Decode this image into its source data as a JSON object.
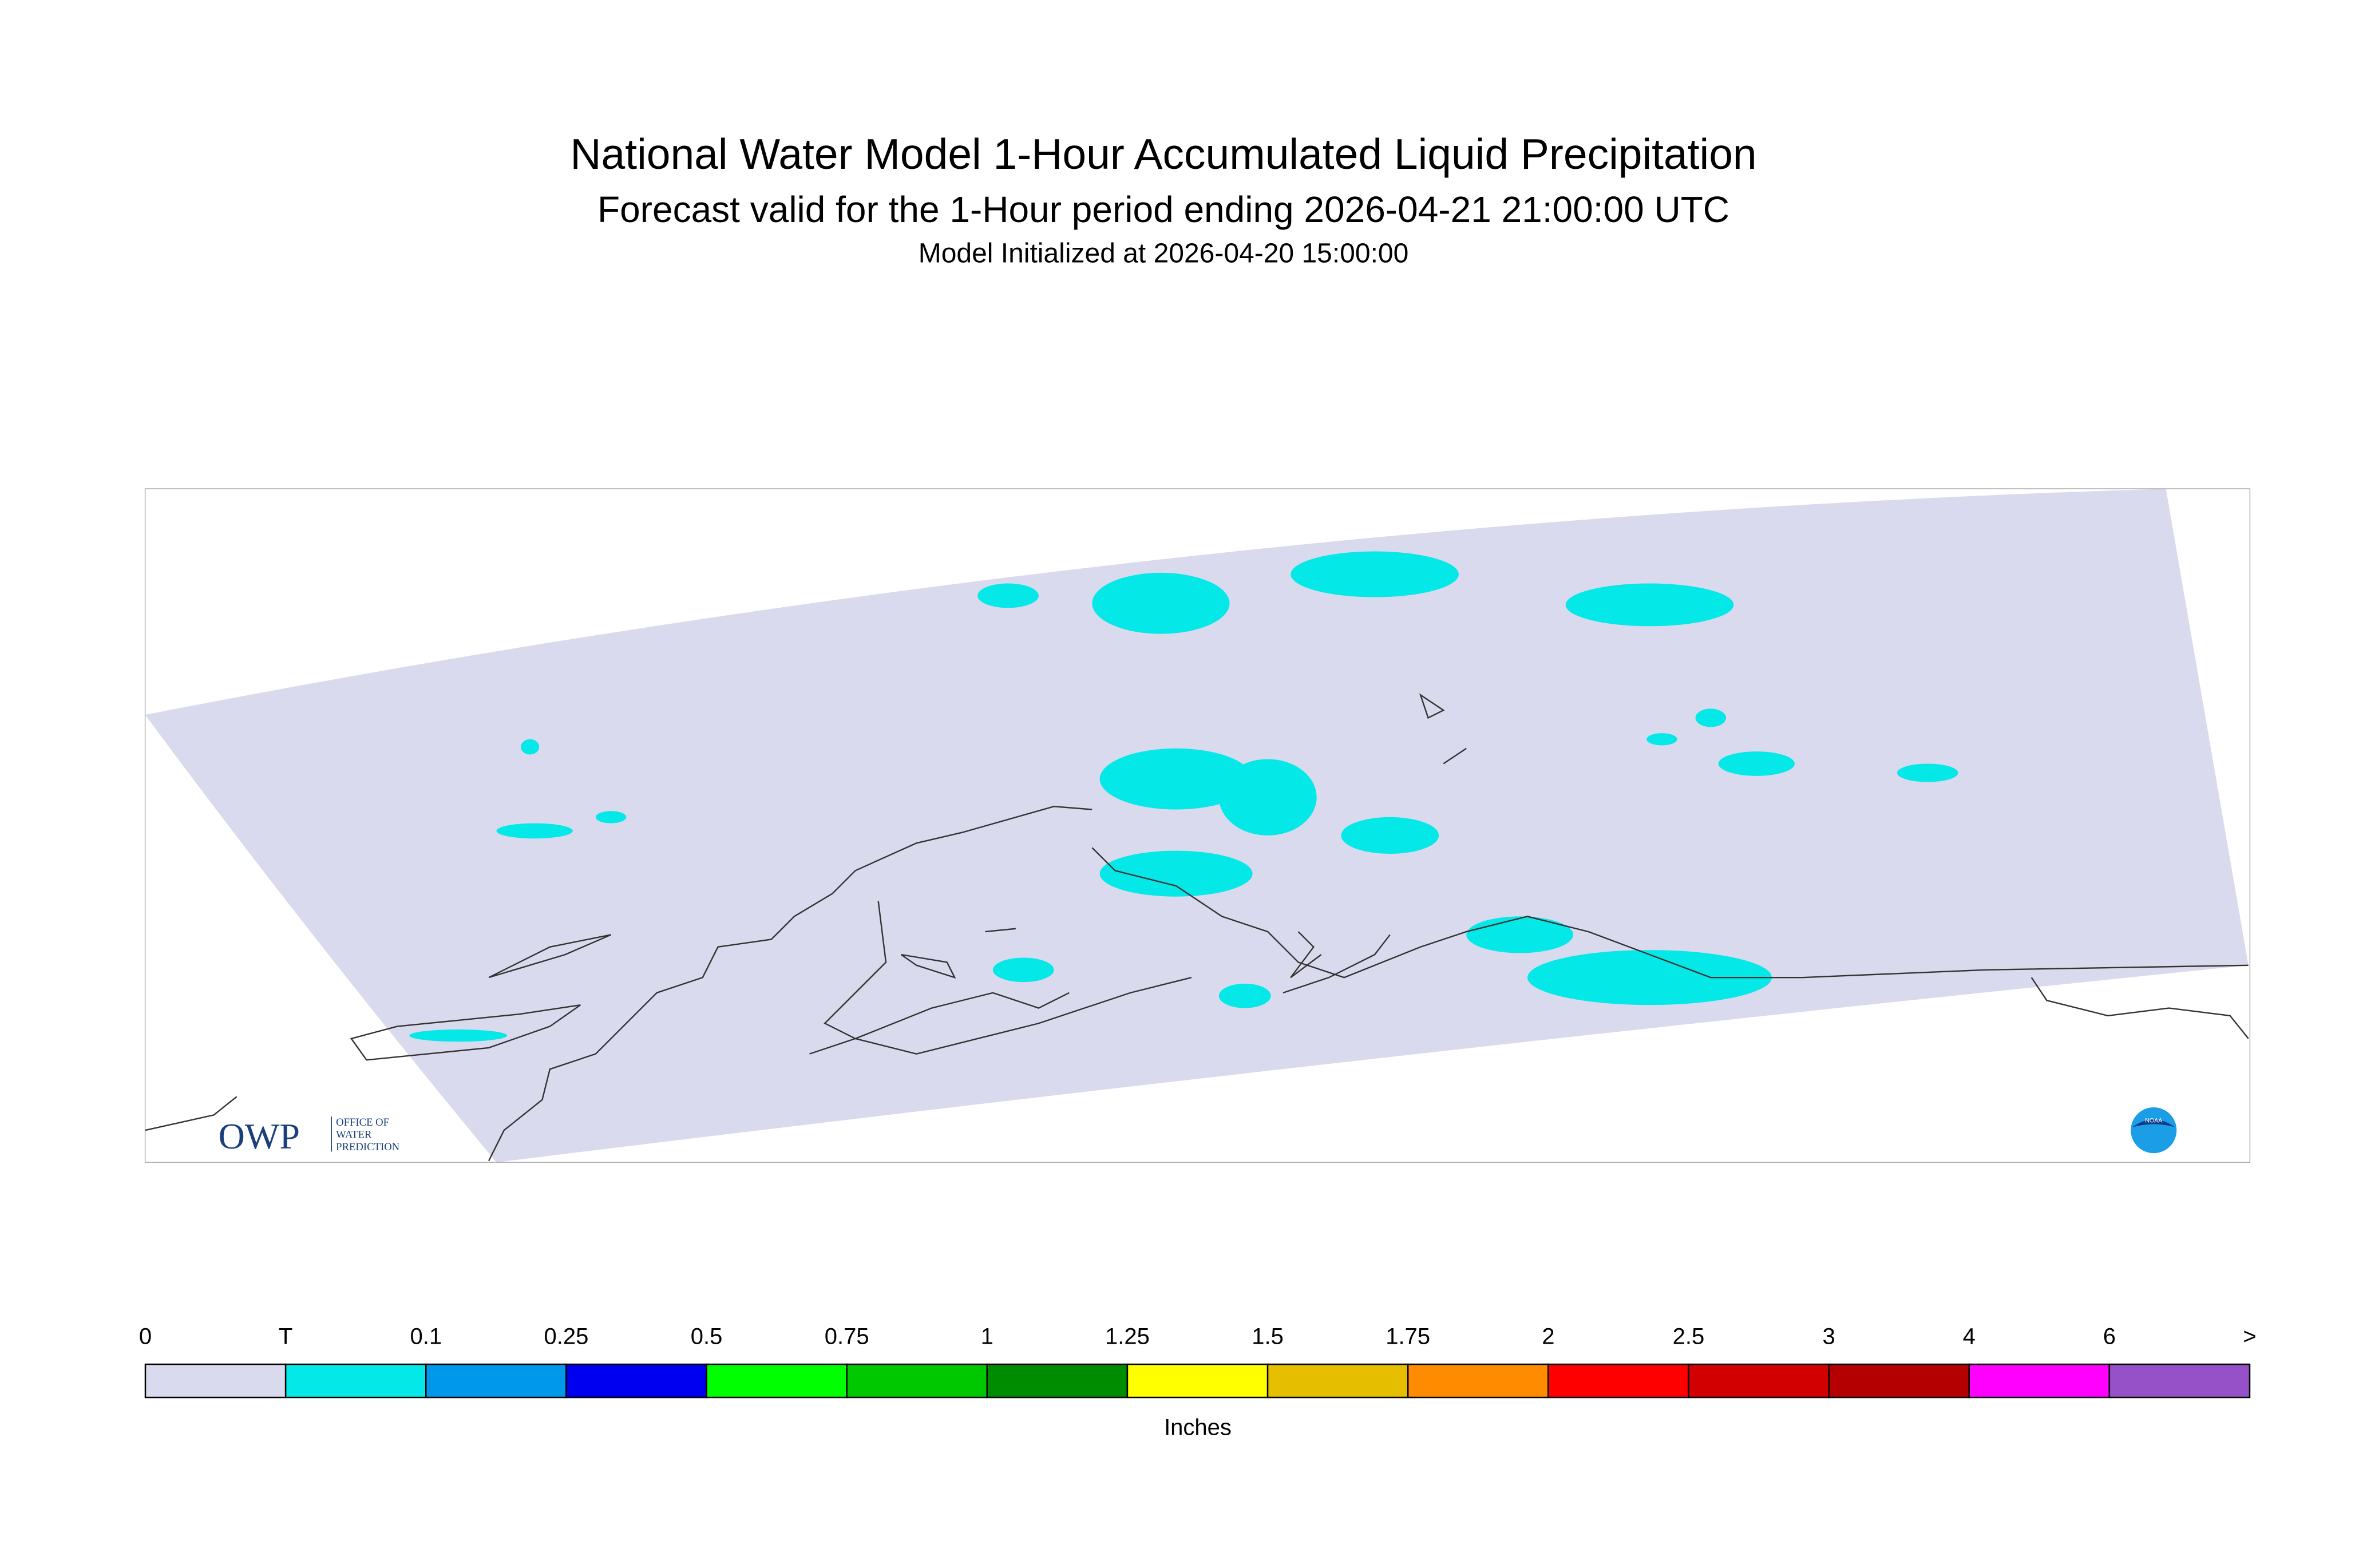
{
  "header": {
    "title": "National Water Model 1-Hour Accumulated Liquid Precipitation",
    "subtitle": "Forecast valid for the 1-Hour period ending 2026-04-21 21:00:00 UTC",
    "initialized": "Model Initialized at 2026-04-20 15:00:00"
  },
  "logos": {
    "owp": "OWP",
    "owp_text": [
      "OFFICE OF",
      "WATER",
      "PREDICTION"
    ],
    "noaa": "NOAA"
  },
  "colorbar": {
    "labels": [
      "0",
      "T",
      "0.1",
      "0.25",
      "0.5",
      "0.75",
      "1",
      "1.25",
      "1.5",
      "1.75",
      "2",
      "2.5",
      "3",
      "4",
      "6",
      ">"
    ],
    "colors": [
      "#dadaee",
      "#05e8e8",
      "#0098ea",
      "#0000f0",
      "#00ff00",
      "#00c800",
      "#008c00",
      "#ffff00",
      "#e6be00",
      "#ff8c00",
      "#ff0000",
      "#d20000",
      "#b40000",
      "#ff00ff",
      "#9650c8"
    ],
    "unit": "Inches"
  }
}
